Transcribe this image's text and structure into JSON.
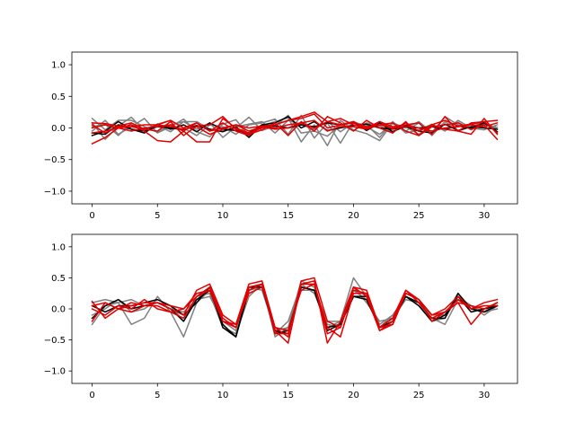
{
  "chart_data": [
    {
      "type": "line",
      "title": "",
      "xlabel": "",
      "ylabel": "",
      "xlim": [
        -1.55,
        32.55
      ],
      "ylim": [
        -1.2,
        1.2
      ],
      "x_ticks": [
        0,
        5,
        10,
        15,
        20,
        25,
        30
      ],
      "y_ticks": [
        1.0,
        0.5,
        0.0,
        -0.5,
        -1.0
      ],
      "x_tick_labels": [
        "0",
        "5",
        "10",
        "15",
        "20",
        "25",
        "30"
      ],
      "y_tick_labels": [
        "1.0",
        "0.5",
        "0.0",
        "−0.5",
        "−1.0"
      ],
      "x": [
        0,
        1,
        2,
        3,
        4,
        5,
        6,
        7,
        8,
        9,
        10,
        11,
        12,
        13,
        14,
        15,
        16,
        17,
        18,
        19,
        20,
        21,
        22,
        23,
        24,
        25,
        26,
        27,
        28,
        29,
        30,
        31
      ],
      "series": [
        {
          "color": "#808080",
          "values": [
            0.15,
            -0.03,
            0.12,
            0.12,
            0.02,
            -0.07,
            0.05,
            0.1,
            0.1,
            -0.02,
            -0.05,
            0.0,
            0.17,
            -0.04,
            0.03,
            0.2,
            -0.08,
            -0.05,
            -0.13,
            0.05,
            -0.04,
            0.08,
            0.03,
            -0.06,
            0.02,
            -0.1,
            0.04,
            -0.02,
            0.09,
            -0.03,
            0.06,
            0.01
          ]
        },
        {
          "color": "#808080",
          "values": [
            0.08,
            -0.18,
            0.03,
            0.17,
            -0.05,
            0.06,
            0.12,
            0.0,
            -0.12,
            0.05,
            0.02,
            -0.1,
            0.05,
            0.08,
            0.14,
            -0.1,
            0.2,
            -0.16,
            0.08,
            -0.24,
            0.1,
            0.02,
            -0.1,
            0.07,
            -0.05,
            0.08,
            -0.12,
            0.1,
            -0.05,
            0.02,
            0.1,
            -0.06
          ]
        },
        {
          "color": "#808080",
          "values": [
            -0.05,
            0.12,
            -0.1,
            0.02,
            0.15,
            -0.08,
            0.02,
            0.14,
            -0.06,
            -0.14,
            0.06,
            0.13,
            -0.12,
            0.04,
            0.1,
            0.16,
            -0.22,
            0.05,
            -0.28,
            0.12,
            -0.03,
            -0.09,
            -0.2,
            0.08,
            0.0,
            0.1,
            -0.07,
            0.18,
            0.05,
            -0.02,
            0.08,
            -0.02
          ]
        },
        {
          "color": "#808080",
          "values": [
            0.02,
            0.06,
            -0.12,
            0.08,
            -0.03,
            0.04,
            -0.06,
            0.1,
            -0.02,
            0.08,
            -0.15,
            0.02,
            0.06,
            0.1,
            -0.08,
            0.12,
            0.05,
            -0.02,
            0.1,
            -0.06,
            0.08,
            0.05,
            -0.15,
            0.1,
            -0.08,
            -0.03,
            0.06,
            -0.05,
            0.12,
            0.0,
            -0.03,
            0.05
          ]
        },
        {
          "color": "#000000",
          "values": [
            -0.08,
            -0.1,
            0.05,
            -0.02,
            -0.05,
            0.02,
            0.0,
            -0.03,
            0.04,
            -0.02,
            -0.06,
            0.02,
            -0.15,
            0.05,
            0.08,
            0.18,
            0.0,
            0.1,
            -0.04,
            0.0,
            0.04,
            0.06,
            0.0,
            -0.02,
            0.02,
            -0.05,
            -0.08,
            0.06,
            -0.04,
            0.02,
            0.0,
            -0.02
          ]
        },
        {
          "color": "#000000",
          "values": [
            -0.12,
            -0.05,
            0.1,
            -0.02,
            -0.08,
            0.06,
            -0.02,
            0.05,
            -0.06,
            0.08,
            -0.02,
            -0.04,
            -0.08,
            0.05,
            0.03,
            0.0,
            0.05,
            0.02,
            0.08,
            0.05,
            0.1,
            -0.04,
            0.08,
            -0.06,
            0.04,
            0.0,
            0.02,
            -0.02,
            0.03,
            0.0,
            0.08,
            -0.06
          ]
        },
        {
          "color": "#e00000",
          "values": [
            0.08,
            0.07,
            0.03,
            0.08,
            -0.02,
            0.05,
            0.12,
            0.0,
            0.08,
            -0.05,
            0.08,
            -0.05,
            -0.12,
            0.03,
            0.05,
            0.12,
            0.18,
            0.25,
            0.1,
            0.15,
            0.05,
            0.0,
            0.1,
            -0.02,
            0.08,
            -0.05,
            0.05,
            0.12,
            0.03,
            0.06,
            0.1,
            -0.08
          ]
        },
        {
          "color": "#e00000",
          "values": [
            -0.25,
            -0.15,
            0.0,
            0.05,
            -0.05,
            -0.2,
            -0.22,
            -0.05,
            -0.22,
            -0.22,
            0.15,
            0.0,
            -0.08,
            0.0,
            0.05,
            0.12,
            0.15,
            0.22,
            0.0,
            0.05,
            0.1,
            -0.02,
            0.1,
            0.02,
            0.05,
            0.08,
            -0.1,
            0.18,
            -0.05,
            -0.1,
            0.15,
            -0.1
          ]
        },
        {
          "color": "#e00000",
          "values": [
            0.05,
            -0.08,
            0.02,
            0.02,
            -0.02,
            -0.05,
            0.1,
            -0.12,
            0.03,
            0.05,
            0.18,
            -0.02,
            -0.1,
            -0.03,
            0.08,
            -0.12,
            0.1,
            -0.05,
            0.18,
            0.08,
            -0.05,
            0.12,
            0.0,
            -0.08,
            0.1,
            -0.12,
            0.05,
            -0.02,
            -0.05,
            0.08,
            0.1,
            0.12
          ]
        },
        {
          "color": "#e00000",
          "values": [
            -0.08,
            -0.05,
            0.0,
            0.02,
            0.05,
            0.05,
            0.02,
            -0.02,
            0.02,
            -0.1,
            -0.02,
            0.05,
            -0.05,
            0.02,
            -0.02,
            0.0,
            0.08,
            0.12,
            -0.05,
            0.02,
            0.02,
            -0.02,
            0.05,
            0.08,
            -0.05,
            -0.12,
            0.02,
            0.05,
            0.08,
            -0.02,
            0.05,
            -0.18
          ]
        },
        {
          "color": "#e00000",
          "values": [
            0.0,
            0.05,
            0.0,
            -0.05,
            0.0,
            0.02,
            0.05,
            -0.05,
            0.08,
            -0.05,
            0.0,
            0.05,
            0.0,
            0.03,
            0.0,
            0.05,
            0.08,
            0.0,
            0.1,
            0.05,
            0.08,
            0.02,
            0.05,
            0.0,
            0.02,
            0.0,
            -0.05,
            0.0,
            0.02,
            0.05,
            0.02,
            0.08
          ]
        }
      ]
    },
    {
      "type": "line",
      "title": "",
      "xlabel": "",
      "ylabel": "",
      "xlim": [
        -1.55,
        32.55
      ],
      "ylim": [
        -1.2,
        1.2
      ],
      "x_ticks": [
        0,
        5,
        10,
        15,
        20,
        25,
        30
      ],
      "y_ticks": [
        1.0,
        0.5,
        0.0,
        -0.5,
        -1.0
      ],
      "x_tick_labels": [
        "0",
        "5",
        "10",
        "15",
        "20",
        "25",
        "30"
      ],
      "y_tick_labels": [
        "1.0",
        "0.5",
        "0.0",
        "−0.5",
        "−1.0"
      ],
      "x": [
        0,
        1,
        2,
        3,
        4,
        5,
        6,
        7,
        8,
        9,
        10,
        11,
        12,
        13,
        14,
        15,
        16,
        17,
        18,
        19,
        20,
        21,
        22,
        23,
        24,
        25,
        26,
        27,
        28,
        29,
        30,
        31
      ],
      "series": [
        {
          "color": "#808080",
          "values": [
            -0.25,
            0.05,
            0.1,
            -0.25,
            -0.15,
            0.2,
            -0.05,
            -0.45,
            0.1,
            0.3,
            -0.3,
            -0.4,
            0.2,
            0.4,
            -0.45,
            -0.3,
            0.3,
            0.3,
            -0.2,
            -0.2,
            0.5,
            0.2,
            -0.25,
            -0.1,
            0.2,
            0.05,
            -0.15,
            -0.25,
            0.15,
            0.05,
            -0.1,
            0.05
          ]
        },
        {
          "color": "#808080",
          "values": [
            0.1,
            0.15,
            0.1,
            0.15,
            0.05,
            0.1,
            0.0,
            -0.05,
            0.15,
            0.2,
            -0.2,
            -0.35,
            0.3,
            0.35,
            -0.4,
            -0.2,
            0.4,
            0.25,
            -0.25,
            -0.3,
            0.35,
            0.1,
            -0.2,
            -0.15,
            0.15,
            0.1,
            -0.2,
            -0.15,
            0.2,
            0.05,
            -0.05,
            0.0
          ]
        },
        {
          "color": "#808080",
          "values": [
            -0.1,
            0.0,
            0.15,
            -0.05,
            0.0,
            0.15,
            0.05,
            -0.2,
            0.2,
            0.25,
            -0.3,
            -0.4,
            0.35,
            0.3,
            -0.35,
            -0.3,
            0.45,
            0.35,
            -0.3,
            -0.2,
            0.3,
            0.15,
            -0.3,
            -0.1,
            0.2,
            0.1,
            -0.1,
            -0.1,
            0.25,
            0.0,
            -0.05,
            0.1
          ]
        },
        {
          "color": "#000000",
          "values": [
            -0.15,
            0.05,
            0.15,
            0.0,
            0.05,
            0.1,
            0.0,
            -0.2,
            0.15,
            0.3,
            -0.25,
            -0.45,
            0.3,
            0.4,
            -0.4,
            -0.35,
            0.35,
            0.3,
            -0.35,
            -0.25,
            0.2,
            0.15,
            -0.3,
            -0.15,
            0.2,
            0.1,
            -0.15,
            -0.15,
            0.25,
            0.0,
            -0.05,
            0.05
          ]
        },
        {
          "color": "#000000",
          "values": [
            0.05,
            -0.05,
            0.05,
            0.05,
            0.1,
            0.15,
            0.05,
            -0.1,
            0.1,
            0.35,
            -0.3,
            -0.45,
            0.35,
            0.35,
            -0.35,
            -0.4,
            0.35,
            0.3,
            -0.3,
            -0.25,
            0.2,
            0.2,
            -0.3,
            -0.2,
            0.2,
            0.05,
            -0.2,
            -0.1,
            0.2,
            -0.05,
            0.0,
            0.05
          ]
        },
        {
          "color": "#e00000",
          "values": [
            0.12,
            -0.15,
            0.0,
            0.05,
            0.1,
            0.1,
            0.0,
            -0.1,
            0.3,
            0.4,
            -0.1,
            -0.25,
            0.4,
            0.45,
            -0.3,
            -0.45,
            0.45,
            0.5,
            -0.2,
            -0.3,
            0.3,
            0.25,
            -0.3,
            -0.25,
            0.25,
            0.15,
            -0.1,
            -0.05,
            0.1,
            0.05,
            0.0,
            0.1
          ]
        },
        {
          "color": "#e00000",
          "values": [
            -0.2,
            0.1,
            0.0,
            0.1,
            0.05,
            0.05,
            -0.05,
            -0.15,
            0.2,
            0.3,
            -0.2,
            -0.3,
            0.35,
            0.4,
            -0.35,
            -0.55,
            0.4,
            0.45,
            -0.55,
            -0.2,
            0.35,
            0.2,
            -0.35,
            -0.2,
            0.3,
            0.1,
            -0.15,
            -0.05,
            0.15,
            0.0,
            0.1,
            0.15
          ]
        },
        {
          "color": "#e00000",
          "values": [
            0.0,
            -0.1,
            0.05,
            0.0,
            0.15,
            0.0,
            -0.05,
            0.0,
            0.25,
            0.3,
            -0.2,
            -0.25,
            0.25,
            0.35,
            -0.3,
            -0.35,
            0.3,
            0.4,
            -0.3,
            -0.45,
            0.25,
            0.25,
            -0.35,
            -0.25,
            0.25,
            0.15,
            -0.2,
            -0.05,
            0.1,
            -0.25,
            0.0,
            0.1
          ]
        },
        {
          "color": "#e00000",
          "values": [
            0.05,
            0.1,
            0.0,
            -0.05,
            0.05,
            0.1,
            0.05,
            0.0,
            0.2,
            0.35,
            -0.15,
            -0.3,
            0.3,
            0.4,
            -0.4,
            -0.4,
            0.4,
            0.4,
            -0.4,
            -0.3,
            0.35,
            0.3,
            -0.3,
            -0.15,
            0.3,
            0.15,
            -0.1,
            0.0,
            0.2,
            0.0,
            0.05,
            0.05
          ]
        }
      ]
    }
  ]
}
